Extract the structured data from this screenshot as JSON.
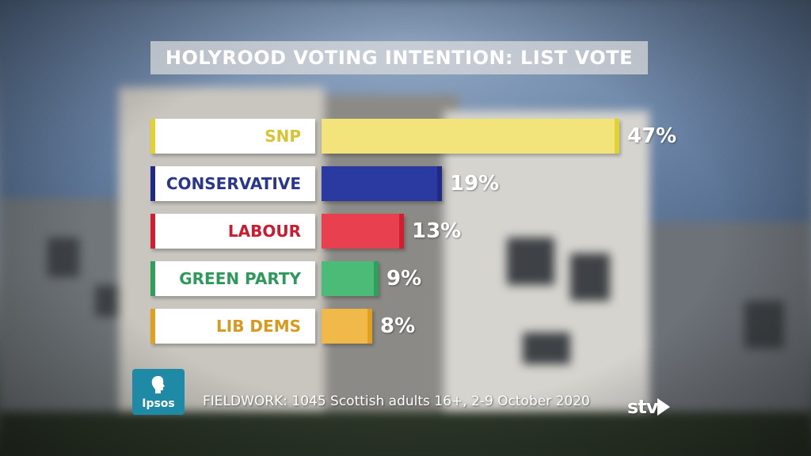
{
  "title": "HOLYROOD VOTING INTENTION: LIST VOTE",
  "footer": {
    "fieldwork": "FIELDWORK: 1045 Scottish adults 16+, 2-9 October 2020",
    "pollster_logo_text": "Ipsos",
    "broadcaster_logo_text": "stv"
  },
  "chart_data": {
    "type": "bar",
    "orientation": "horizontal",
    "title": "HOLYROOD VOTING INTENTION: LIST VOTE",
    "categories": [
      "SNP",
      "CONSERVATIVE",
      "LABOUR",
      "GREEN PARTY",
      "LIB DEMS"
    ],
    "values": [
      47,
      19,
      13,
      9,
      8
    ],
    "value_labels": [
      "47%",
      "19%",
      "13%",
      "9%",
      "8%"
    ],
    "unit": "%",
    "colors": {
      "bars": [
        "#f2e47a",
        "#2b3aa0",
        "#e8404f",
        "#4dbb78",
        "#f1b94a"
      ],
      "bar_edges": [
        "#e2d230",
        "#1e2a86",
        "#cf1f30",
        "#2f9f5c",
        "#e0a020"
      ],
      "labels": [
        "#d8c430",
        "#2a3590",
        "#cc1a2e",
        "#2d9a5c",
        "#d89a1c"
      ]
    },
    "xlim": [
      0,
      47
    ],
    "grid": false,
    "legend": "none"
  }
}
